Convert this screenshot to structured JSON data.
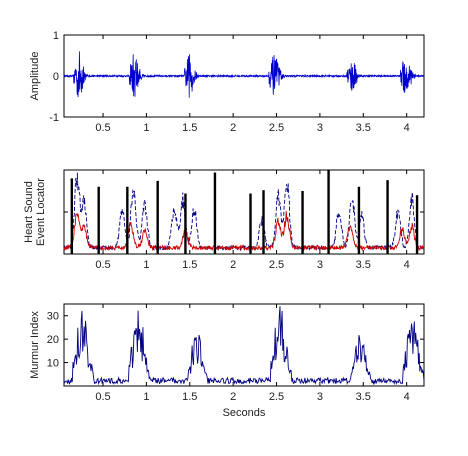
{
  "chart_data": [
    {
      "type": "line",
      "panel": "top",
      "ylabel": "Amplitude",
      "xlabel": "",
      "xlim": [
        0.05,
        4.2
      ],
      "ylim": [
        -1,
        1
      ],
      "xticks": [
        "0.5",
        "1",
        "1.5",
        "2",
        "2.5",
        "3",
        "3.5",
        "4"
      ],
      "xtick_values": [
        0.5,
        1,
        1.5,
        2,
        2.5,
        3,
        3.5,
        4
      ],
      "yticks": [
        "-1",
        "0",
        "1"
      ],
      "ytick_values": [
        -1,
        0,
        1
      ],
      "series_color": "#0000cc",
      "beats": [
        {
          "t": 0.18,
          "amp": 0.62,
          "w": 0.16
        },
        {
          "t": 0.82,
          "amp": 0.58,
          "w": 0.17
        },
        {
          "t": 1.46,
          "amp": 0.55,
          "w": 0.16
        },
        {
          "t": 2.43,
          "amp": 0.5,
          "w": 0.18
        },
        {
          "t": 3.33,
          "amp": 0.42,
          "w": 0.16
        },
        {
          "t": 3.95,
          "amp": 0.5,
          "w": 0.18
        }
      ]
    },
    {
      "type": "line",
      "panel": "middle",
      "ylabel_line1": "Heart Sound",
      "ylabel_line2": "Event Locator",
      "xlabel": "",
      "xlim": [
        0.05,
        4.2
      ],
      "ylim": [
        0,
        1
      ],
      "xticks": [
        "0.5",
        "1",
        "1.5",
        "2",
        "2.5",
        "3",
        "3.5",
        "4"
      ],
      "xtick_values": [
        0.5,
        1,
        1.5,
        2,
        2.5,
        3,
        3.5,
        4
      ],
      "series": [
        {
          "color": "#000080",
          "style": "dashed",
          "peaks": [
            [
              0.2,
              0.82
            ],
            [
              0.28,
              0.55
            ],
            [
              0.72,
              0.45
            ],
            [
              0.85,
              0.72
            ],
            [
              0.98,
              0.52
            ],
            [
              1.32,
              0.48
            ],
            [
              1.42,
              0.58
            ],
            [
              1.55,
              0.45
            ],
            [
              2.33,
              0.35
            ],
            [
              2.52,
              0.62
            ],
            [
              2.62,
              0.78
            ],
            [
              3.22,
              0.45
            ],
            [
              3.37,
              0.6
            ],
            [
              3.48,
              0.4
            ],
            [
              3.9,
              0.42
            ],
            [
              4.06,
              0.6
            ]
          ]
        },
        {
          "color": "#cc0000",
          "style": "solid",
          "peaks": [
            [
              0.2,
              0.38
            ],
            [
              0.28,
              0.25
            ],
            [
              0.82,
              0.28
            ],
            [
              0.98,
              0.2
            ],
            [
              1.45,
              0.2
            ],
            [
              2.52,
              0.32
            ],
            [
              2.62,
              0.4
            ],
            [
              3.35,
              0.28
            ],
            [
              3.95,
              0.22
            ],
            [
              4.06,
              0.25
            ]
          ]
        }
      ],
      "events": [
        {
          "t": 0.14,
          "h": 0.9
        },
        {
          "t": 0.45,
          "h": 0.8
        },
        {
          "t": 0.78,
          "h": 0.8
        },
        {
          "t": 1.13,
          "h": 0.87
        },
        {
          "t": 1.45,
          "h": 0.72
        },
        {
          "t": 1.79,
          "h": 0.97
        },
        {
          "t": 2.2,
          "h": 0.72
        },
        {
          "t": 2.35,
          "h": 0.76
        },
        {
          "t": 2.8,
          "h": 0.75
        },
        {
          "t": 3.1,
          "h": 1.0
        },
        {
          "t": 3.45,
          "h": 0.8
        },
        {
          "t": 3.78,
          "h": 0.88
        },
        {
          "t": 4.12,
          "h": 0.7
        }
      ]
    },
    {
      "type": "line",
      "panel": "bottom",
      "ylabel": "Murmur Index",
      "xlabel": "Seconds",
      "xlim": [
        0.05,
        4.2
      ],
      "ylim": [
        0,
        35
      ],
      "xticks": [
        "0.5",
        "1",
        "1.5",
        "2",
        "2.5",
        "3",
        "3.5",
        "4"
      ],
      "xtick_values": [
        0.5,
        1,
        1.5,
        2,
        2.5,
        3,
        3.5,
        4
      ],
      "yticks": [
        "10",
        "20",
        "30"
      ],
      "ytick_values": [
        10,
        20,
        30
      ],
      "series_color": "#000080",
      "bursts": [
        {
          "t": 0.17,
          "w": 0.22,
          "peak": 30
        },
        {
          "t": 0.82,
          "w": 0.22,
          "peak": 32
        },
        {
          "t": 1.5,
          "w": 0.2,
          "peak": 22
        },
        {
          "t": 2.45,
          "w": 0.22,
          "peak": 33
        },
        {
          "t": 3.38,
          "w": 0.2,
          "peak": 24
        },
        {
          "t": 3.98,
          "w": 0.22,
          "peak": 29
        }
      ]
    }
  ]
}
